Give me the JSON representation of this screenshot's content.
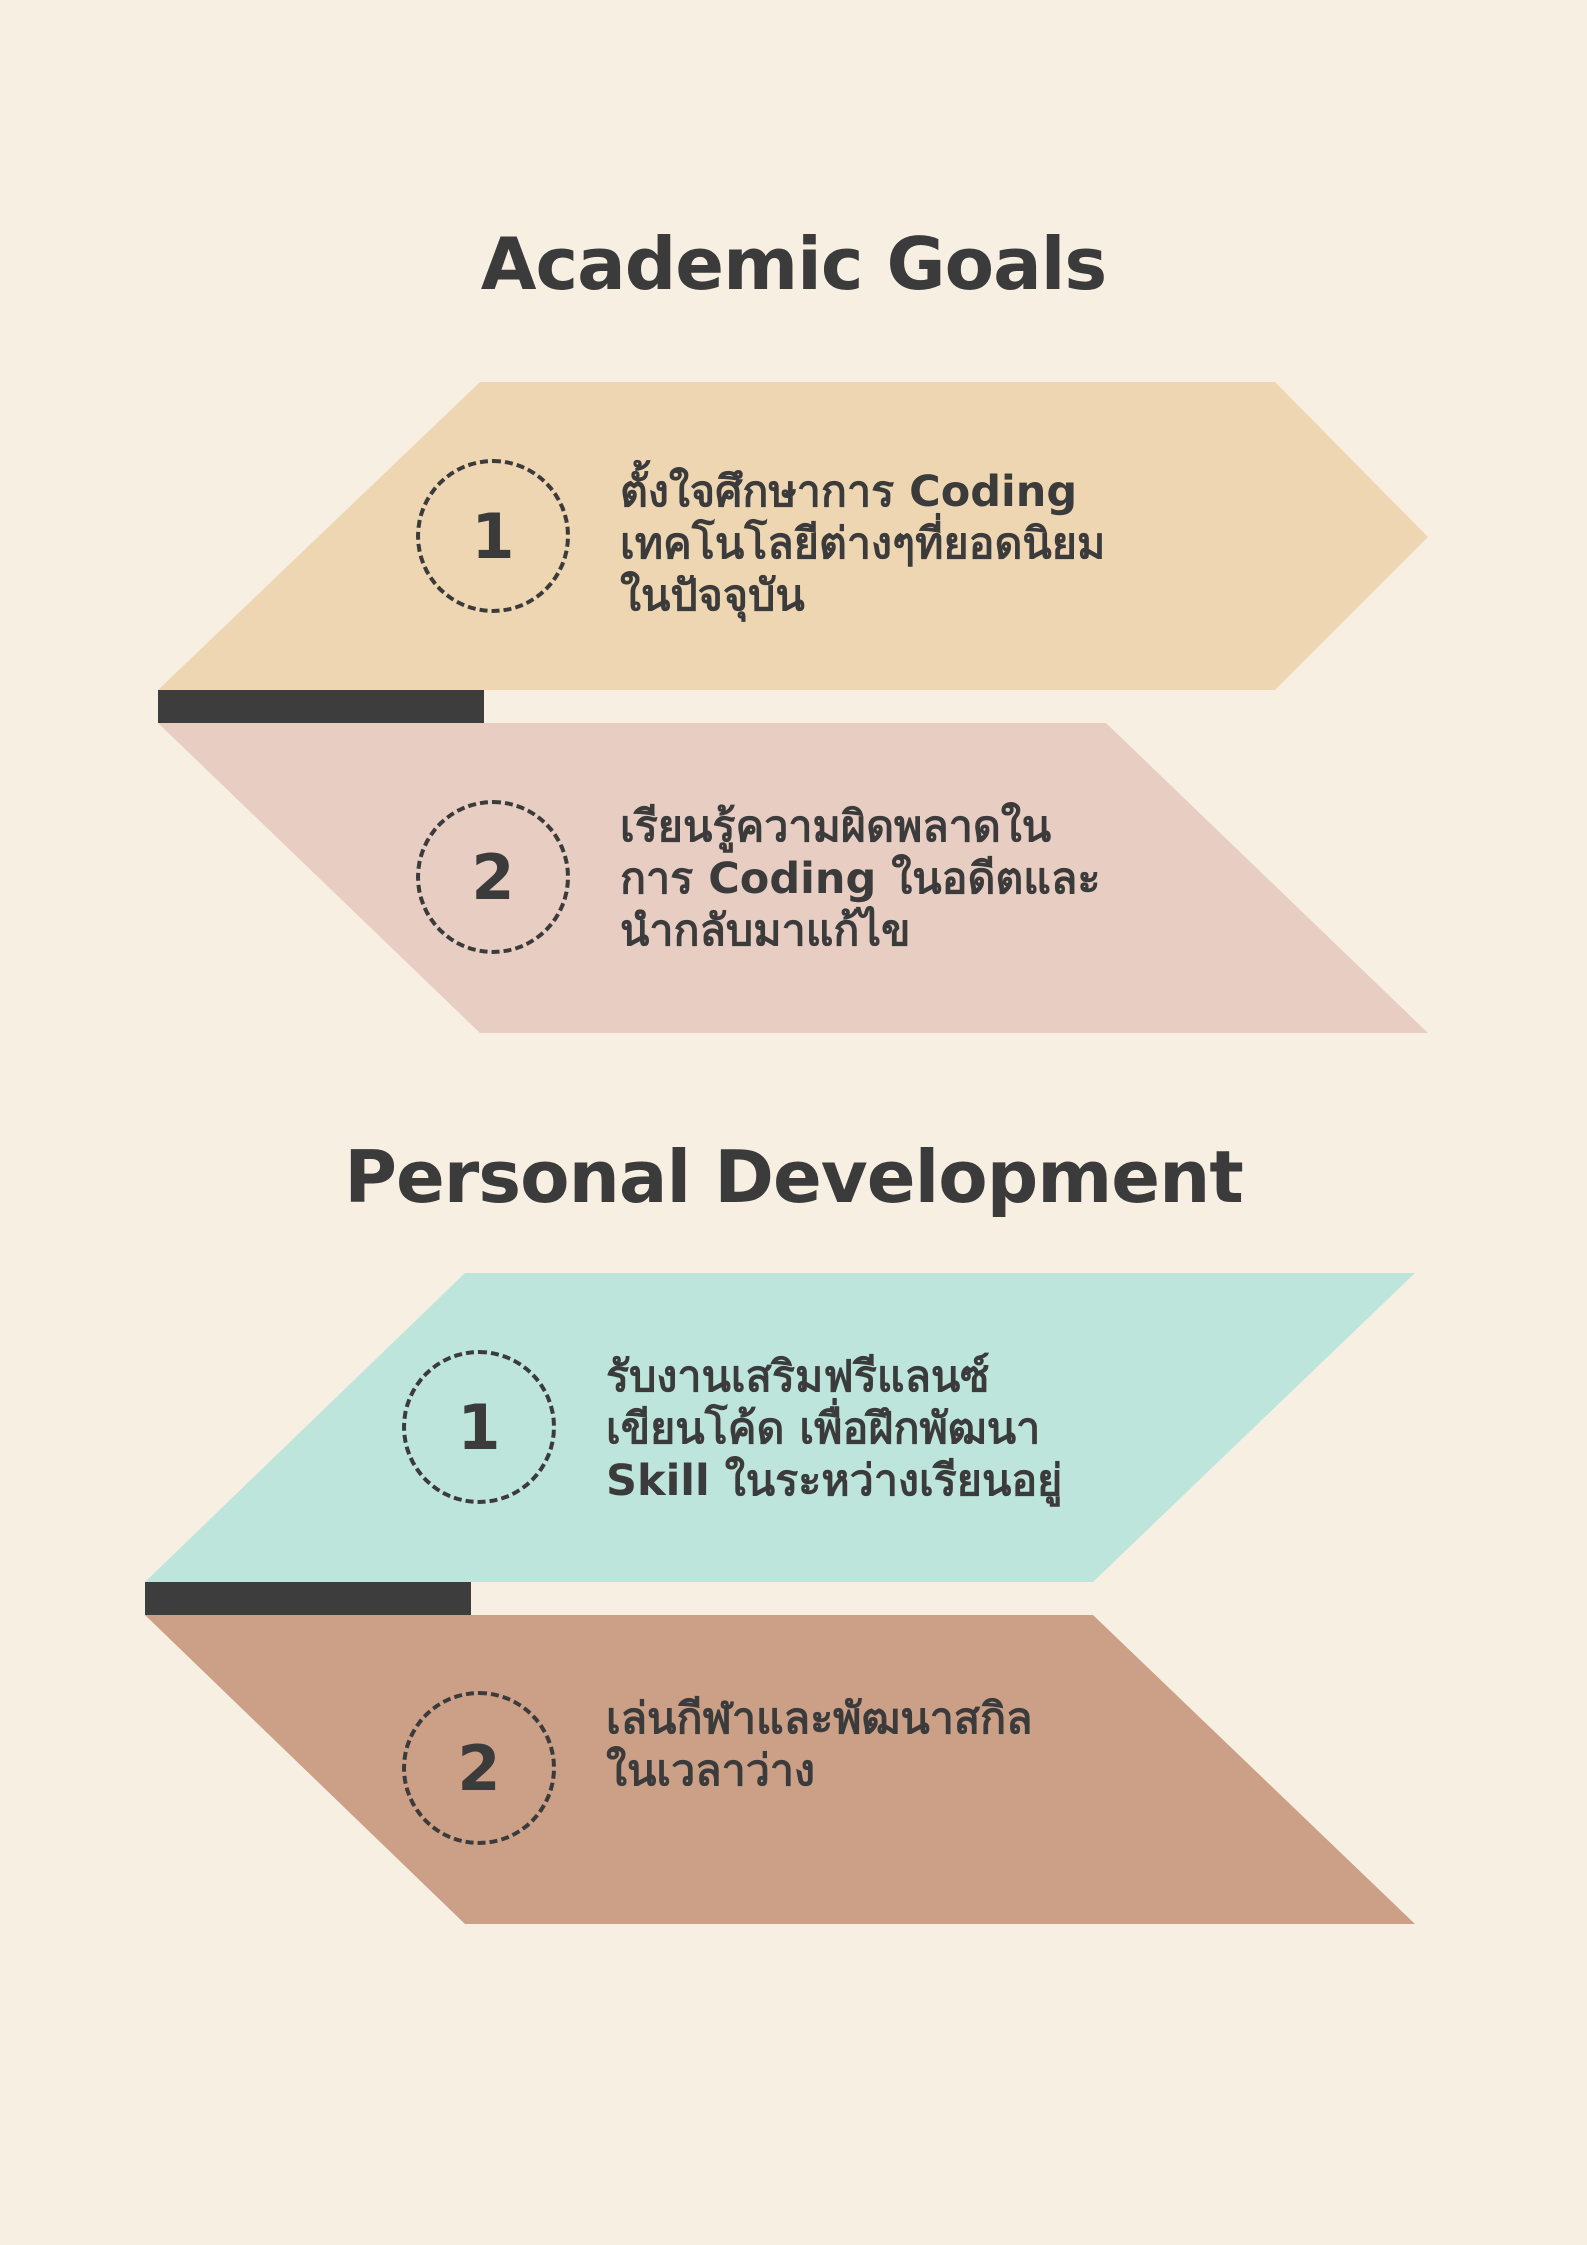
{
  "colors": {
    "background": "#f7efe2",
    "tan": "#efd6b3",
    "rose": "#e8cdc3",
    "mint": "#bde5dc",
    "clay": "#cba087",
    "bar": "#3d3d3d",
    "text": "#3b3b3b"
  },
  "academic": {
    "title": "Academic Goals",
    "items": [
      {
        "number": "1",
        "lines": [
          "ตั้งใจศึกษาการ Coding",
          "เทคโนโลยีต่างๆที่ยอดนิยม",
          "ในปัจจุบัน"
        ]
      },
      {
        "number": "2",
        "lines": [
          "เรียนรู้ความผิดพลาดใน",
          "การ Coding ในอดีตและ",
          "นำกลับมาแก้ไข"
        ]
      }
    ]
  },
  "personal": {
    "title": "Personal Development",
    "items": [
      {
        "number": "1",
        "lines": [
          "รับงานเสริมฟรีแลนซ์",
          "เขียนโค้ด เพื่อฝึกพัฒนา",
          "Skill ในระหว่างเรียนอยู่"
        ]
      },
      {
        "number": "2",
        "lines": [
          "เล่นกีฬาและพัฒนาสกิล",
          "ในเวลาว่าง"
        ]
      }
    ]
  }
}
